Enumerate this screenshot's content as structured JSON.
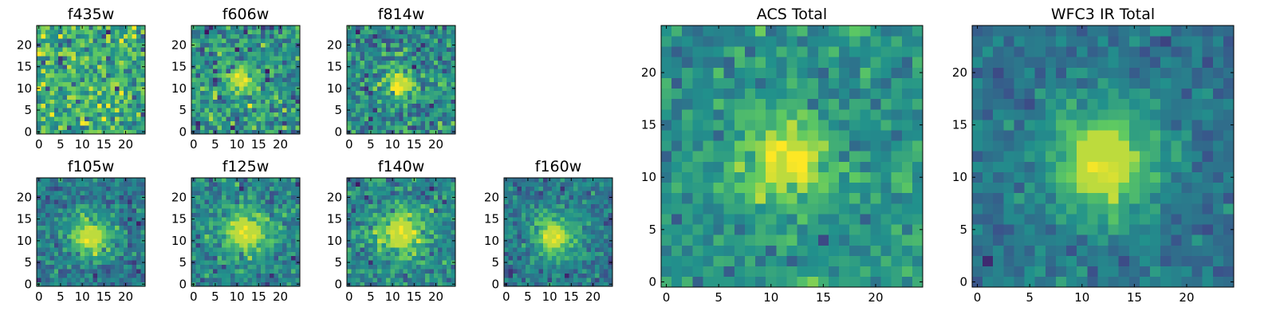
{
  "chart_data": {
    "type": "heatmap",
    "colormap": "viridis",
    "colors": [
      "#440154",
      "#3b528b",
      "#21918c",
      "#5ec962",
      "#fde725"
    ],
    "panels": [
      {
        "id": "f435w",
        "title": "f435w",
        "grid_size": 25,
        "xlim": [
          -0.5,
          24.5
        ],
        "ylim": [
          -0.5,
          24.5
        ],
        "xticks": [
          0,
          5,
          10,
          15,
          20
        ],
        "yticks": [
          0,
          5,
          10,
          15,
          20
        ],
        "source": {
          "cx": 12,
          "cy": 11,
          "sigma": 3.0,
          "amplitude": 0.05
        },
        "noise": 0.38,
        "baseline": 0.62,
        "seed": 11
      },
      {
        "id": "f606w",
        "title": "f606w",
        "grid_size": 25,
        "xlim": [
          -0.5,
          24.5
        ],
        "ylim": [
          -0.5,
          24.5
        ],
        "xticks": [
          0,
          5,
          10,
          15,
          20
        ],
        "yticks": [
          0,
          5,
          10,
          15,
          20
        ],
        "source": {
          "cx": 11,
          "cy": 12,
          "sigma": 2.6,
          "amplitude": 0.35
        },
        "noise": 0.34,
        "baseline": 0.5,
        "seed": 23
      },
      {
        "id": "f814w",
        "title": "f814w",
        "grid_size": 25,
        "xlim": [
          -0.5,
          24.5
        ],
        "ylim": [
          -0.5,
          24.5
        ],
        "xticks": [
          0,
          5,
          10,
          15,
          20
        ],
        "yticks": [
          0,
          5,
          10,
          15,
          20
        ],
        "source": {
          "cx": 12,
          "cy": 11,
          "sigma": 2.6,
          "amplitude": 0.38
        },
        "noise": 0.32,
        "baseline": 0.48,
        "seed": 37
      },
      {
        "id": "f105w",
        "title": "f105w",
        "grid_size": 25,
        "xlim": [
          -0.5,
          24.5
        ],
        "ylim": [
          -0.5,
          24.5
        ],
        "xticks": [
          0,
          5,
          10,
          15,
          20
        ],
        "yticks": [
          0,
          5,
          10,
          15,
          20
        ],
        "source": {
          "cx": 12,
          "cy": 11,
          "sigma": 3.5,
          "amplitude": 0.5
        },
        "noise": 0.24,
        "baseline": 0.4,
        "seed": 41
      },
      {
        "id": "f125w",
        "title": "f125w",
        "grid_size": 25,
        "xlim": [
          -0.5,
          24.5
        ],
        "ylim": [
          -0.5,
          24.5
        ],
        "xticks": [
          0,
          5,
          10,
          15,
          20
        ],
        "yticks": [
          0,
          5,
          10,
          15,
          20
        ],
        "source": {
          "cx": 12,
          "cy": 12,
          "sigma": 4.0,
          "amplitude": 0.42
        },
        "noise": 0.26,
        "baseline": 0.45,
        "seed": 53
      },
      {
        "id": "f140w",
        "title": "f140w",
        "grid_size": 25,
        "xlim": [
          -0.5,
          24.5
        ],
        "ylim": [
          -0.5,
          24.5
        ],
        "xticks": [
          0,
          5,
          10,
          15,
          20
        ],
        "yticks": [
          0,
          5,
          10,
          15,
          20
        ],
        "source": {
          "cx": 12,
          "cy": 12,
          "sigma": 4.0,
          "amplitude": 0.42
        },
        "noise": 0.25,
        "baseline": 0.45,
        "seed": 67
      },
      {
        "id": "f160w",
        "title": "f160w",
        "grid_size": 25,
        "xlim": [
          -0.5,
          24.5
        ],
        "ylim": [
          -0.5,
          24.5
        ],
        "xticks": [
          0,
          5,
          10,
          15,
          20
        ],
        "yticks": [
          0,
          5,
          10,
          15,
          20
        ],
        "source": {
          "cx": 11,
          "cy": 11,
          "sigma": 3.6,
          "amplitude": 0.5
        },
        "noise": 0.22,
        "baseline": 0.4,
        "seed": 79
      },
      {
        "id": "acs-total",
        "title": "ACS Total",
        "grid_size": 25,
        "xlim": [
          -0.5,
          24.5
        ],
        "ylim": [
          -0.5,
          24.5
        ],
        "xticks": [
          0,
          5,
          10,
          15,
          20
        ],
        "yticks": [
          0,
          5,
          10,
          15,
          20
        ],
        "source": {
          "cx": 11.5,
          "cy": 11.5,
          "sigma": 3.2,
          "amplitude": 0.45
        },
        "noise": 0.22,
        "baseline": 0.5,
        "seed": 97
      },
      {
        "id": "wfc3-ir-total",
        "title": "WFC3 IR Total",
        "grid_size": 25,
        "xlim": [
          -0.5,
          24.5
        ],
        "ylim": [
          -0.5,
          24.5
        ],
        "xticks": [
          0,
          5,
          10,
          15,
          20
        ],
        "yticks": [
          0,
          5,
          10,
          15,
          20
        ],
        "source": {
          "cx": 12,
          "cy": 11.5,
          "sigma": 3.8,
          "amplitude": 0.52
        },
        "noise": 0.16,
        "baseline": 0.38,
        "seed": 113
      }
    ]
  }
}
